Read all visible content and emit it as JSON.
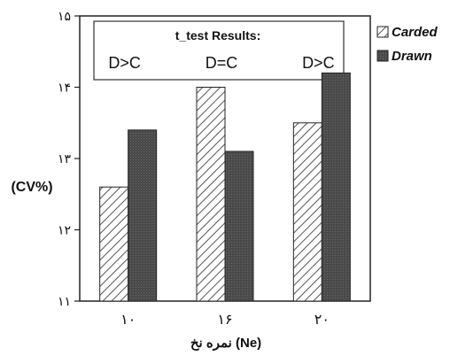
{
  "chart_data": {
    "type": "bar",
    "categories": [
      "۱۰",
      "۱۶",
      "۲۰"
    ],
    "series": [
      {
        "name": "Carded",
        "values": [
          12.6,
          14.0,
          13.5
        ]
      },
      {
        "name": "Drawn",
        "values": [
          13.4,
          13.1,
          14.2
        ]
      }
    ],
    "yticks": [
      {
        "value": 11,
        "label": "۱۱"
      },
      {
        "value": 12,
        "label": "۱۲"
      },
      {
        "value": 13,
        "label": "۱۳"
      },
      {
        "value": 14,
        "label": "۱۴"
      },
      {
        "value": 15,
        "label": "۱۵"
      }
    ],
    "ylim": [
      11,
      15
    ],
    "ylabel": "(CV%)",
    "xlabel": "نمره نخ (Ne)",
    "legend_position": "right",
    "annotation": {
      "title": "t_test Results:",
      "results": [
        "D>C",
        "D=C",
        "D>C"
      ]
    },
    "grid": false,
    "colors": {
      "carded": "#ffffff",
      "drawn": "#4a4a4a"
    }
  }
}
